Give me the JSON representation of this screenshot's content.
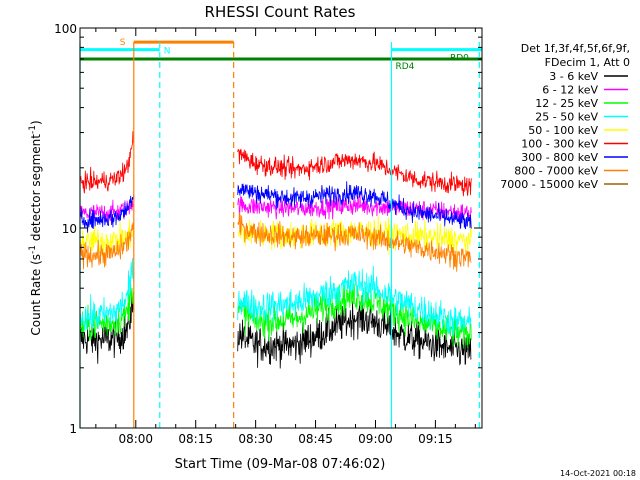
{
  "chart_data": {
    "type": "line",
    "title": "RHESSI Count Rates",
    "xlabel": "Start Time (09-Mar-08 07:46:02)",
    "ylabel": "Count Rate (s",
    "ylabel_exp": "-1",
    "ylabel_mid": " detector segment",
    "ylabel_end": ")",
    "yscale": "log",
    "ylim": [
      1,
      100
    ],
    "xlim": [
      "07:46:02",
      "09:26:40"
    ],
    "grid": false,
    "legend_placement": "right",
    "y_tick_labels": [
      "1",
      "10",
      "100"
    ],
    "x_tick_labels": [
      "08:00",
      "08:15",
      "08:30",
      "08:45",
      "09:00",
      "09:15"
    ],
    "x_ticks": [
      "08:00",
      "08:15",
      "08:30",
      "08:45",
      "09:00",
      "09:15"
    ],
    "legend_header": [
      "Det 1f,3f,4f,5f,6f,9f,",
      "FDecim 1, Att 0"
    ],
    "data_gap": [
      "07:59:30",
      "08:24:30"
    ],
    "series": [
      {
        "name": "3 - 6 keV",
        "color": "#000000",
        "x": [
          "07:46:02",
          "07:50",
          "07:55",
          "07:58",
          "07:59",
          "08:25",
          "08:30",
          "08:40",
          "08:50",
          "08:55",
          "09:00",
          "09:05",
          "09:10",
          "09:15",
          "09:20",
          "09:24"
        ],
        "y": [
          2.8,
          2.75,
          2.8,
          3.1,
          4.0,
          3.0,
          2.6,
          2.6,
          3.2,
          3.6,
          3.4,
          3.0,
          2.75,
          2.6,
          2.45,
          2.4
        ]
      },
      {
        "name": "6 - 12 keV",
        "color": "#ff00ff",
        "x": [
          "07:46:02",
          "07:50",
          "07:55",
          "07:58",
          "07:59",
          "08:25",
          "08:30",
          "08:40",
          "08:50",
          "08:55",
          "09:00",
          "09:05",
          "09:10",
          "09:15",
          "09:20",
          "09:24"
        ],
        "y": [
          11.8,
          11.8,
          12.0,
          12.5,
          13.5,
          13.0,
          12.8,
          12.5,
          12.8,
          13.0,
          12.8,
          12.6,
          12.4,
          12.2,
          12.0,
          11.8
        ]
      },
      {
        "name": "12 - 25 keV",
        "color": "#00ff00",
        "x": [
          "07:46:02",
          "07:50",
          "07:55",
          "07:58",
          "07:59",
          "08:25",
          "08:30",
          "08:40",
          "08:50",
          "08:55",
          "09:00",
          "09:05",
          "09:10",
          "09:15",
          "09:20",
          "09:24"
        ],
        "y": [
          3.2,
          3.3,
          3.4,
          3.8,
          5.0,
          4.0,
          3.4,
          3.5,
          4.3,
          4.6,
          4.3,
          3.8,
          3.4,
          3.2,
          3.0,
          2.9
        ]
      },
      {
        "name": "25 - 50 keV",
        "color": "#00ffff",
        "x": [
          "07:46:02",
          "07:50",
          "07:55",
          "07:58",
          "07:59",
          "08:25",
          "08:30",
          "08:40",
          "08:50",
          "08:55",
          "09:00",
          "09:05",
          "09:10",
          "09:15",
          "09:20",
          "09:24"
        ],
        "y": [
          3.6,
          3.6,
          3.8,
          4.5,
          6.0,
          4.5,
          4.0,
          4.2,
          4.9,
          5.3,
          5.0,
          4.4,
          4.0,
          3.7,
          3.4,
          3.3
        ]
      },
      {
        "name": "50 - 100 keV",
        "color": "#ffff00",
        "x": [
          "07:46:02",
          "07:50",
          "07:55",
          "07:58",
          "07:59",
          "08:25",
          "08:30",
          "08:40",
          "08:50",
          "08:55",
          "09:00",
          "09:05",
          "09:10",
          "09:15",
          "09:20",
          "09:24"
        ],
        "y": [
          8.6,
          8.6,
          8.7,
          9.0,
          9.5,
          9.4,
          9.3,
          9.2,
          9.5,
          9.6,
          9.5,
          9.3,
          9.1,
          8.9,
          8.7,
          8.6
        ]
      },
      {
        "name": "100 - 300 keV",
        "color": "#ff0000",
        "x": [
          "07:46:02",
          "07:50",
          "07:55",
          "07:58",
          "07:59",
          "08:25",
          "08:30",
          "08:40",
          "08:50",
          "08:55",
          "09:00",
          "09:05",
          "09:10",
          "09:15",
          "09:20",
          "09:24"
        ],
        "y": [
          17.0,
          17.0,
          17.5,
          20.0,
          27.0,
          24.0,
          21.0,
          19.5,
          21.5,
          22.0,
          21.0,
          19.0,
          17.5,
          17.0,
          16.5,
          16.0
        ]
      },
      {
        "name": "300 - 800 keV",
        "color": "#0000ff",
        "x": [
          "07:46:02",
          "07:50",
          "07:55",
          "07:58",
          "07:59",
          "08:25",
          "08:30",
          "08:40",
          "08:50",
          "08:55",
          "09:00",
          "09:05",
          "09:10",
          "09:15",
          "09:20",
          "09:24"
        ],
        "y": [
          11.0,
          11.0,
          11.3,
          12.5,
          14.5,
          16.0,
          15.0,
          14.0,
          14.8,
          15.0,
          14.5,
          13.0,
          12.0,
          11.5,
          11.0,
          10.5
        ]
      },
      {
        "name": "800 - 7000 keV",
        "color": "#ff8000",
        "x": [
          "07:46:02",
          "07:50",
          "07:55",
          "07:58",
          "07:59",
          "08:25",
          "08:30",
          "08:40",
          "08:50",
          "08:55",
          "09:00",
          "09:05",
          "09:10",
          "09:15",
          "09:20",
          "09:24"
        ],
        "y": [
          7.5,
          7.3,
          7.5,
          8.5,
          10.0,
          10.5,
          9.5,
          9.0,
          9.2,
          9.3,
          9.0,
          8.5,
          8.0,
          7.7,
          7.3,
          7.0
        ]
      },
      {
        "name": "7000 - 15000 keV",
        "color": "#a06000",
        "x": [],
        "y": []
      }
    ],
    "flag_bars": [
      {
        "label": "S",
        "color": "#ff8000",
        "y_level": 85,
        "start": "07:59:30",
        "end": "08:24:30"
      },
      {
        "label": "N",
        "color": "#00ffff",
        "y_level": 78,
        "start": "07:46:02",
        "end": "08:06:00"
      },
      {
        "label": "RD0",
        "color": "#00ffff",
        "y_level": 78,
        "start": "09:04:00",
        "end": "09:26:40"
      },
      {
        "label": "RD4",
        "color": "#008000",
        "y_level": 70,
        "start": "07:46:02",
        "end": "09:26:40"
      }
    ],
    "markers": [
      {
        "time": "07:59:30",
        "color": "#ff8000",
        "style": "solid"
      },
      {
        "time": "08:06:00",
        "color": "#00ffff",
        "style": "dashed"
      },
      {
        "time": "08:24:30",
        "color": "#ff8000",
        "style": "dashed"
      },
      {
        "time": "09:04:00",
        "color": "#00ffff",
        "style": "solid"
      },
      {
        "time": "09:26:00",
        "color": "#00ffff",
        "style": "dashed"
      },
      {
        "time": "07:46:02",
        "color": "#00ffff",
        "style": "solid"
      }
    ]
  },
  "footer": {
    "timestamp": "14-Oct-2021 00:18"
  }
}
